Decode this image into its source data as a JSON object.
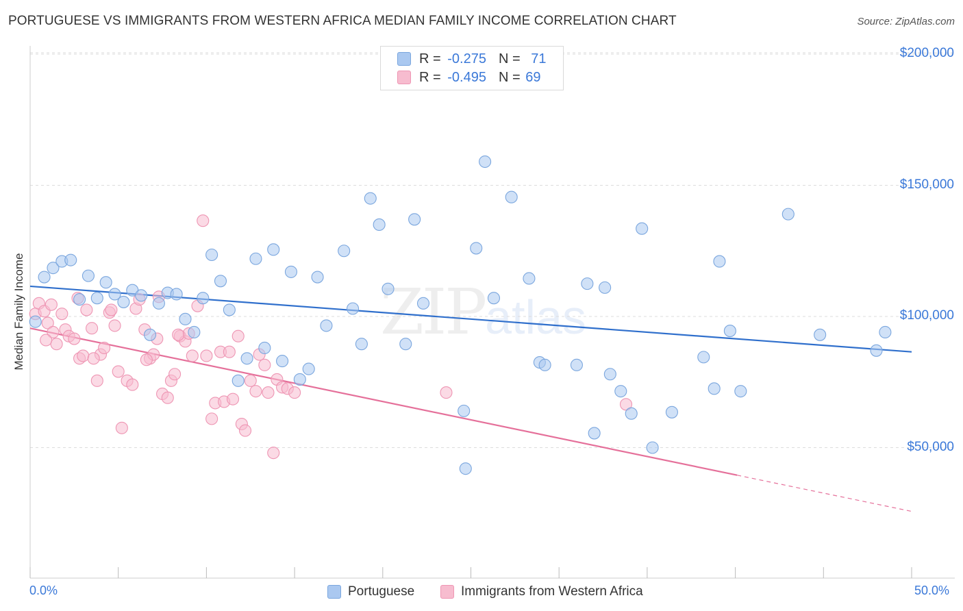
{
  "title": "PORTUGUESE VS IMMIGRANTS FROM WESTERN AFRICA MEDIAN FAMILY INCOME CORRELATION CHART",
  "source": "Source: ZipAtlas.com",
  "watermark": {
    "zip": "ZIP",
    "atlas": "atlas"
  },
  "colors": {
    "blue_fill": "#aac8f0",
    "blue_stroke": "#7aa6de",
    "blue_line": "#2f6fcc",
    "pink_fill": "#f7bccf",
    "pink_stroke": "#ee95b3",
    "pink_line": "#e5709a",
    "axis_text": "#3a78d8",
    "grid": "#dcdcdc"
  },
  "legend": {
    "rows": [
      {
        "r_label": "R =",
        "r_value": "-0.275",
        "n_label": "N =",
        "n_value": "71"
      },
      {
        "r_label": "R =",
        "r_value": "-0.495",
        "n_label": "N =",
        "n_value": "69"
      }
    ]
  },
  "bottom_legend": {
    "series1": "Portuguese",
    "series2": "Immigrants from Western Africa"
  },
  "chart_data": {
    "type": "scatter",
    "title": "PORTUGUESE VS IMMIGRANTS FROM WESTERN AFRICA MEDIAN FAMILY INCOME CORRELATION CHART",
    "xlabel": "",
    "ylabel": "Median Family Income",
    "xlim": [
      0,
      50
    ],
    "ylim": [
      0,
      210000
    ],
    "x_tick_labels": [
      "0.0%",
      "50.0%"
    ],
    "y_ticks": [
      50000,
      100000,
      150000,
      200000
    ],
    "y_tick_labels": [
      "$50,000",
      "$100,000",
      "$150,000",
      "$200,000"
    ],
    "grid": "horizontal dashed",
    "legend_position": "top-center",
    "series": [
      {
        "name": "Portuguese",
        "r": -0.275,
        "n": 71,
        "trend": {
          "x0": 0,
          "y0": 111500,
          "x1": 50,
          "y1": 86500
        },
        "points": [
          [
            0.3,
            98000
          ],
          [
            0.8,
            115000
          ],
          [
            1.3,
            118500
          ],
          [
            1.8,
            121000
          ],
          [
            2.3,
            121500
          ],
          [
            2.8,
            106500
          ],
          [
            3.3,
            115500
          ],
          [
            3.8,
            107000
          ],
          [
            4.3,
            113000
          ],
          [
            4.8,
            108500
          ],
          [
            5.3,
            105500
          ],
          [
            5.8,
            110000
          ],
          [
            6.3,
            108000
          ],
          [
            6.8,
            93000
          ],
          [
            7.3,
            105000
          ],
          [
            7.8,
            109000
          ],
          [
            8.3,
            108500
          ],
          [
            8.8,
            99000
          ],
          [
            9.3,
            94000
          ],
          [
            9.8,
            107000
          ],
          [
            10.3,
            123500
          ],
          [
            10.8,
            113500
          ],
          [
            11.3,
            102500
          ],
          [
            11.8,
            75500
          ],
          [
            12.3,
            84000
          ],
          [
            12.8,
            122000
          ],
          [
            13.3,
            88000
          ],
          [
            13.8,
            125500
          ],
          [
            14.3,
            83000
          ],
          [
            14.8,
            117000
          ],
          [
            15.3,
            76000
          ],
          [
            15.8,
            80000
          ],
          [
            16.3,
            115000
          ],
          [
            16.8,
            96500
          ],
          [
            17.8,
            125000
          ],
          [
            18.3,
            103000
          ],
          [
            18.8,
            89500
          ],
          [
            19.3,
            145000
          ],
          [
            19.8,
            135000
          ],
          [
            20.3,
            110500
          ],
          [
            21.3,
            89500
          ],
          [
            21.8,
            137000
          ],
          [
            22.3,
            105000
          ],
          [
            24.6,
            64000
          ],
          [
            24.7,
            42000
          ],
          [
            25.3,
            126000
          ],
          [
            25.8,
            159000
          ],
          [
            26.3,
            107000
          ],
          [
            27.3,
            145500
          ],
          [
            28.3,
            114500
          ],
          [
            28.9,
            82500
          ],
          [
            29.2,
            81500
          ],
          [
            31.0,
            81500
          ],
          [
            31.6,
            112500
          ],
          [
            32.0,
            55500
          ],
          [
            32.6,
            111000
          ],
          [
            32.9,
            78000
          ],
          [
            33.5,
            71500
          ],
          [
            34.1,
            63000
          ],
          [
            34.7,
            133500
          ],
          [
            35.3,
            50000
          ],
          [
            36.4,
            63500
          ],
          [
            38.2,
            84500
          ],
          [
            38.8,
            72500
          ],
          [
            39.1,
            121000
          ],
          [
            39.7,
            94500
          ],
          [
            40.3,
            71500
          ],
          [
            43.0,
            139000
          ],
          [
            44.8,
            93000
          ],
          [
            48.0,
            87000
          ],
          [
            48.5,
            94000
          ]
        ]
      },
      {
        "name": "Immigrants from Western Africa",
        "r": -0.495,
        "n": 69,
        "trend": {
          "x0": 0,
          "y0": 95500,
          "x1": 40.1,
          "y1": 39500,
          "dash_x1": 50,
          "dash_y1": 25700
        },
        "points": [
          [
            0.3,
            101000
          ],
          [
            0.5,
            105000
          ],
          [
            0.8,
            102000
          ],
          [
            1.0,
            97500
          ],
          [
            1.3,
            94000
          ],
          [
            1.5,
            89500
          ],
          [
            1.8,
            101000
          ],
          [
            2.0,
            95000
          ],
          [
            2.2,
            92500
          ],
          [
            2.5,
            91500
          ],
          [
            2.8,
            84000
          ],
          [
            3.0,
            85000
          ],
          [
            3.2,
            102500
          ],
          [
            3.5,
            95500
          ],
          [
            3.8,
            75500
          ],
          [
            4.0,
            85500
          ],
          [
            4.2,
            88000
          ],
          [
            4.5,
            101500
          ],
          [
            4.8,
            96500
          ],
          [
            5.0,
            79000
          ],
          [
            5.2,
            57500
          ],
          [
            5.5,
            75500
          ],
          [
            5.8,
            74000
          ],
          [
            6.0,
            103000
          ],
          [
            6.2,
            106500
          ],
          [
            6.5,
            95000
          ],
          [
            6.8,
            84000
          ],
          [
            7.0,
            85500
          ],
          [
            7.2,
            91500
          ],
          [
            7.5,
            70500
          ],
          [
            7.8,
            69000
          ],
          [
            8.0,
            75500
          ],
          [
            8.2,
            78000
          ],
          [
            8.5,
            92500
          ],
          [
            8.8,
            90500
          ],
          [
            9.0,
            93500
          ],
          [
            9.2,
            85000
          ],
          [
            9.5,
            104000
          ],
          [
            9.8,
            136500
          ],
          [
            10.0,
            85000
          ],
          [
            10.3,
            61000
          ],
          [
            10.5,
            67000
          ],
          [
            10.8,
            86500
          ],
          [
            11.0,
            67500
          ],
          [
            11.3,
            86500
          ],
          [
            11.5,
            68500
          ],
          [
            11.8,
            92500
          ],
          [
            12.0,
            59000
          ],
          [
            12.2,
            56500
          ],
          [
            12.5,
            75500
          ],
          [
            12.8,
            71500
          ],
          [
            13.0,
            85500
          ],
          [
            13.3,
            81500
          ],
          [
            13.5,
            71000
          ],
          [
            13.8,
            48000
          ],
          [
            14.0,
            76000
          ],
          [
            14.3,
            73000
          ],
          [
            14.6,
            72500
          ],
          [
            15.0,
            71000
          ],
          [
            23.6,
            71000
          ],
          [
            33.8,
            66500
          ],
          [
            1.2,
            104500
          ],
          [
            2.7,
            107000
          ],
          [
            4.6,
            102500
          ],
          [
            7.3,
            107500
          ],
          [
            3.6,
            84000
          ],
          [
            6.6,
            83500
          ],
          [
            8.4,
            93000
          ],
          [
            0.9,
            91000
          ]
        ]
      }
    ]
  }
}
